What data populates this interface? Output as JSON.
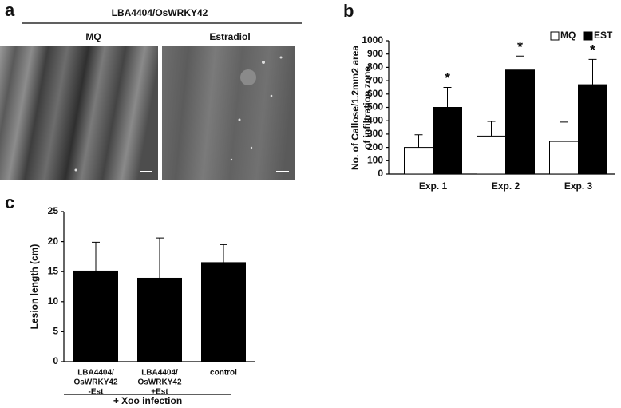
{
  "panel_a": {
    "label": "a",
    "title": "LBA4404/OsWRKY42",
    "images": [
      "MQ",
      "Estradiol"
    ]
  },
  "chart_data": [
    {
      "type": "bar",
      "panel_label": "b",
      "y_label": [
        "No. of Callose/1.2mm2 area",
        "of infiltration zone"
      ],
      "categories": [
        "Exp. 1",
        "Exp. 2",
        "Exp. 3"
      ],
      "series": [
        {
          "name": "MQ",
          "color": "#ffffff",
          "values": [
            200,
            285,
            245
          ],
          "errors": [
            95,
            110,
            145
          ]
        },
        {
          "name": "EST",
          "color": "#000000",
          "values": [
            500,
            780,
            670
          ],
          "errors": [
            150,
            105,
            190
          ]
        }
      ],
      "significance": [
        "*",
        "*",
        "*"
      ],
      "ylim": [
        0,
        1000
      ],
      "yticks": [
        0,
        100,
        200,
        300,
        400,
        500,
        600,
        700,
        800,
        900,
        1000
      ],
      "legend": "top-right"
    },
    {
      "type": "bar",
      "panel_label": "c",
      "y_label": [
        "Lesion length (cm)"
      ],
      "categories": [
        [
          "LBA4404/",
          "OsWRKY42",
          "-Est"
        ],
        [
          "LBA4404/",
          "OsWRKY42",
          "+Est"
        ],
        [
          "control"
        ]
      ],
      "values": [
        15.1,
        13.9,
        16.5
      ],
      "errors": [
        4.8,
        6.7,
        3.0
      ],
      "color": "#000000",
      "ylim": [
        0,
        25
      ],
      "yticks": [
        0,
        5,
        10,
        15,
        20,
        25
      ],
      "x_label": "+ Xoo infection"
    }
  ]
}
